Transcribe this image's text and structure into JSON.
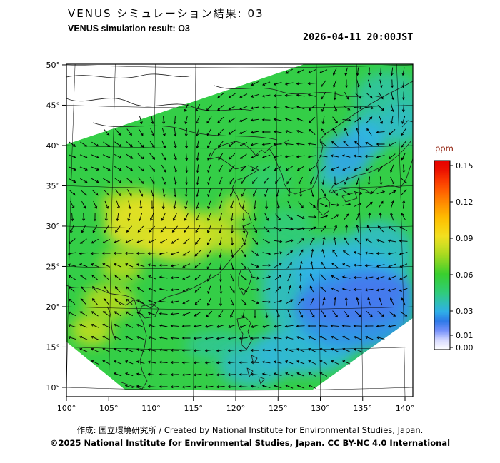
{
  "header": {
    "title_jp": "VENUS シミュレーション結果: 03",
    "title_en": "VENUS simulation result: O3",
    "timestamp": "2026-04-11 20:00JST"
  },
  "footer": {
    "credit": "作成: 国立環境研究所 / Created by National Institute for Environmental Studies, Japan.",
    "license": "©2025 National Institute for Environmental Studies, Japan. CC BY-NC 4.0 International"
  },
  "chart_data": {
    "type": "heatmap",
    "title": "VENUS シミュレーション結果: 03",
    "subtitle": "VENUS simulation result: O3",
    "timestamp": "2026-04-11 20:00JST",
    "variable": "O3",
    "unit": "ppm",
    "projection": "lat-lon map of East Asia",
    "overlay": "wind vector arrows",
    "xlim": [
      100,
      140
    ],
    "ylim": [
      10,
      50
    ],
    "xticks": [
      100,
      105,
      110,
      115,
      120,
      125,
      130,
      135,
      140
    ],
    "xtick_labels": [
      "100°",
      "105°",
      "110°",
      "115°",
      "120°",
      "125°",
      "130°",
      "135°",
      "140°"
    ],
    "yticks": [
      10,
      15,
      20,
      25,
      30,
      35,
      40,
      45,
      50
    ],
    "ytick_labels": [
      "10°",
      "15°",
      "20°",
      "25°",
      "30°",
      "35°",
      "40°",
      "45°",
      "50°"
    ],
    "background_ppm": 0.055,
    "swath_polygon": [
      [
        100,
        40.5
      ],
      [
        128,
        50.4
      ],
      [
        141,
        55
      ],
      [
        141,
        19
      ],
      [
        129,
        10
      ],
      [
        107,
        10
      ],
      [
        100,
        16
      ]
    ],
    "colorbar": {
      "title": "ppm",
      "title_color": "#8b1500",
      "min": 0.0,
      "max": 0.15,
      "tick_values": [
        0.15,
        0.12,
        0.09,
        0.06,
        0.03,
        0.01,
        0.0
      ],
      "tick_labels": [
        "0.15",
        "0.12",
        "0.09",
        "0.06",
        "0.03",
        "0.01",
        "0.00"
      ],
      "colormap": [
        [
          0,
          "#ffffff"
        ],
        [
          0.008,
          "#c8ccff"
        ],
        [
          0.012,
          "#8899ff"
        ],
        [
          0.02,
          "#2e6fe8"
        ],
        [
          0.03,
          "#2fb4e8"
        ],
        [
          0.045,
          "#30cc7a"
        ],
        [
          0.06,
          "#36cf2e"
        ],
        [
          0.075,
          "#a0d820"
        ],
        [
          0.09,
          "#f0e224"
        ],
        [
          0.105,
          "#ffc400"
        ],
        [
          0.12,
          "#ff8800"
        ],
        [
          0.135,
          "#ff4400"
        ],
        [
          0.15,
          "#e60000"
        ]
      ]
    },
    "field_regions": [
      {
        "lon": 110,
        "lat": 30.5,
        "rlon": 5.5,
        "rlat": 3.5,
        "ppm": 0.088
      },
      {
        "lon": 113.5,
        "lat": 28.5,
        "rlon": 4,
        "rlat": 2.5,
        "ppm": 0.085
      },
      {
        "lon": 117,
        "lat": 30,
        "rlon": 3,
        "rlat": 2.2,
        "ppm": 0.082
      },
      {
        "lon": 107.5,
        "lat": 33,
        "rlon": 3.5,
        "rlat": 2,
        "ppm": 0.08
      },
      {
        "lon": 120,
        "lat": 32.5,
        "rlon": 1.8,
        "rlat": 1.5,
        "ppm": 0.082
      },
      {
        "lon": 119.5,
        "lat": 28.5,
        "rlon": 2,
        "rlat": 1.5,
        "ppm": 0.08
      },
      {
        "lon": 105,
        "lat": 21,
        "rlon": 3,
        "rlat": 2.2,
        "ppm": 0.078
      },
      {
        "lon": 103,
        "lat": 17.5,
        "rlon": 2.5,
        "rlat": 2,
        "ppm": 0.08
      },
      {
        "lon": 106.5,
        "lat": 25.5,
        "rlon": 2.5,
        "rlat": 2,
        "ppm": 0.078
      },
      {
        "lon": 124,
        "lat": 36,
        "rlon": 2.5,
        "rlat": 2,
        "ppm": 0.048
      },
      {
        "lon": 126,
        "lat": 30,
        "rlon": 3,
        "rlat": 2.5,
        "ppm": 0.045
      },
      {
        "lon": 124,
        "lat": 26,
        "rlon": 3,
        "rlat": 2.5,
        "ppm": 0.045
      },
      {
        "lon": 118,
        "lat": 15.5,
        "rlon": 4,
        "rlat": 1.8,
        "ppm": 0.042
      },
      {
        "lon": 138,
        "lat": 46,
        "rlon": 4,
        "rlat": 3.5,
        "ppm": 0.04
      },
      {
        "lon": 139.5,
        "lat": 43,
        "rlon": 2.5,
        "rlat": 2.5,
        "ppm": 0.035
      },
      {
        "lon": 132,
        "lat": 22,
        "rlon": 9,
        "rlat": 7,
        "ppm": 0.035
      },
      {
        "lon": 133,
        "lat": 24.5,
        "rlon": 6,
        "rlat": 3,
        "ppm": 0.03
      },
      {
        "lon": 128,
        "lat": 15,
        "rlon": 6,
        "rlat": 3,
        "ppm": 0.032
      },
      {
        "lon": 122,
        "lat": 13,
        "rlon": 4,
        "rlat": 2.5,
        "ppm": 0.035
      },
      {
        "lon": 137,
        "lat": 27,
        "rlon": 4,
        "rlat": 4,
        "ppm": 0.035
      },
      {
        "lon": 134,
        "lat": 20,
        "rlon": 7,
        "rlat": 5,
        "ppm": 0.025
      },
      {
        "lon": 133.5,
        "lat": 20.5,
        "rlon": 6,
        "rlat": 2.5,
        "ppm": 0.018
      },
      {
        "lon": 136.5,
        "lat": 22.5,
        "rlon": 4,
        "rlat": 2,
        "ppm": 0.018
      },
      {
        "lon": 133,
        "lat": 39,
        "rlon": 2.8,
        "rlat": 2.8,
        "ppm": 0.028
      },
      {
        "lon": 135.5,
        "lat": 41.5,
        "rlon": 2.5,
        "rlat": 2.5,
        "ppm": 0.03
      },
      {
        "lon": 131.5,
        "lat": 36.5,
        "rlon": 2,
        "rlat": 1.5,
        "ppm": 0.035
      }
    ],
    "grid_estimate": {
      "note": "approximate O3 ppm read from colors; rows ordered lat 50N down to 10N; null = outside observation swath",
      "lons": [
        100,
        105,
        110,
        115,
        120,
        125,
        130,
        135,
        140
      ],
      "rows": [
        {
          "lat": 50,
          "ppm": [
            null,
            null,
            null,
            null,
            null,
            0.05,
            0.05,
            0.04,
            0.04
          ]
        },
        {
          "lat": 45,
          "ppm": [
            null,
            null,
            null,
            0.06,
            0.05,
            0.05,
            0.05,
            0.04,
            0.04
          ]
        },
        {
          "lat": 40,
          "ppm": [
            0.05,
            0.06,
            0.06,
            0.06,
            0.05,
            0.05,
            0.04,
            0.03,
            0.04
          ]
        },
        {
          "lat": 35,
          "ppm": [
            0.06,
            0.06,
            0.07,
            0.06,
            0.07,
            0.05,
            0.04,
            0.03,
            0.03
          ]
        },
        {
          "lat": 30,
          "ppm": [
            0.06,
            0.08,
            0.09,
            0.08,
            0.07,
            0.05,
            0.04,
            0.03,
            0.03
          ]
        },
        {
          "lat": 25,
          "ppm": [
            0.07,
            0.08,
            0.08,
            0.08,
            0.06,
            0.04,
            0.03,
            0.02,
            0.02
          ]
        },
        {
          "lat": 20,
          "ppm": [
            0.07,
            0.07,
            0.06,
            0.05,
            0.04,
            0.03,
            0.02,
            0.02,
            0.03
          ]
        },
        {
          "lat": 15,
          "ppm": [
            null,
            0.06,
            0.06,
            0.04,
            0.03,
            0.03,
            0.02,
            null,
            null
          ]
        },
        {
          "lat": 10,
          "ppm": [
            null,
            null,
            0.05,
            0.04,
            0.04,
            0.03,
            null,
            null,
            null
          ]
        }
      ]
    }
  }
}
